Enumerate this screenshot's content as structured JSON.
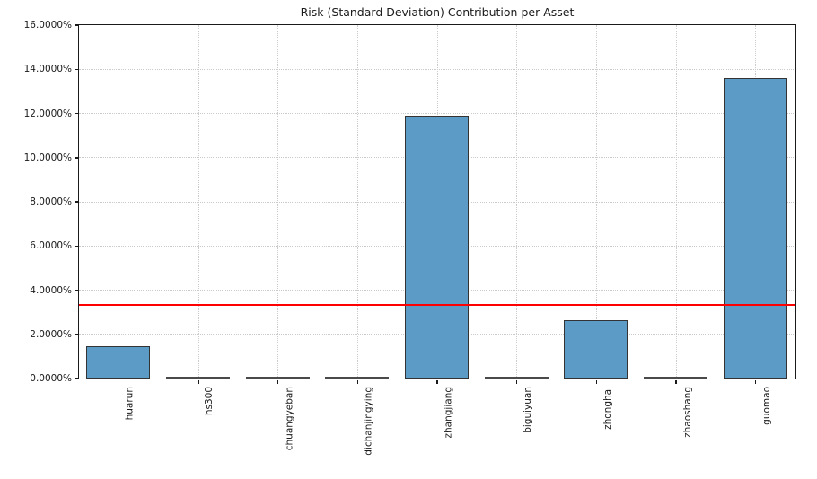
{
  "chart_data": {
    "type": "bar",
    "title": "Risk (Standard Deviation) Contribution per Asset",
    "categories": [
      "huarun",
      "hs300",
      "chuangyeban",
      "dichanjingying",
      "zhangjiang",
      "biguiyuan",
      "zhonghai",
      "zhaoshang",
      "guomao"
    ],
    "values": [
      1.43,
      0.0,
      0.0,
      0.0,
      11.88,
      0.0,
      2.64,
      0.0,
      13.58
    ],
    "unit": "%",
    "xlabel": "",
    "ylabel": "",
    "ylim": [
      0,
      16
    ],
    "y_ticks": [
      0,
      2,
      4,
      6,
      8,
      10,
      12,
      14,
      16
    ],
    "y_tick_labels": [
      "0.0000%",
      "2.0000%",
      "4.0000%",
      "6.0000%",
      "8.0000%",
      "10.0000%",
      "12.0000%",
      "14.0000%",
      "16.0000%"
    ],
    "threshold_line": {
      "value": 3.32,
      "color": "#ff0000"
    },
    "grid": true,
    "legend": "none",
    "bar_color": "#5d9bc7",
    "bar_edge_color": "#333333",
    "zero_bar_color": "#4a4a4a",
    "grid_color": "#cbcbcb"
  }
}
